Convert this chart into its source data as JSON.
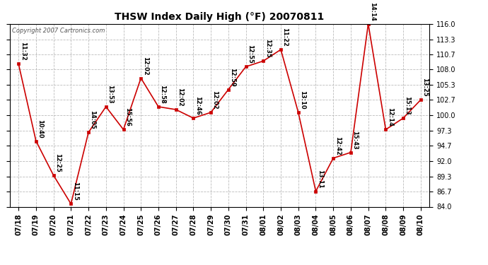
{
  "title": "THSW Index Daily High (°F) 20070811",
  "copyright": "Copyright 2007 Cartronics.com",
  "dates": [
    "07/18",
    "07/19",
    "07/20",
    "07/21",
    "07/22",
    "07/23",
    "07/24",
    "07/25",
    "07/26",
    "07/27",
    "07/28",
    "07/29",
    "07/30",
    "07/31",
    "08/01",
    "08/02",
    "08/03",
    "08/04",
    "08/05",
    "08/06",
    "08/07",
    "08/08",
    "08/09",
    "08/10"
  ],
  "values": [
    109.0,
    95.5,
    89.5,
    84.5,
    97.0,
    101.5,
    97.5,
    106.5,
    101.5,
    101.0,
    99.5,
    100.5,
    104.5,
    108.5,
    109.5,
    111.5,
    100.5,
    86.7,
    92.5,
    93.5,
    116.0,
    97.5,
    99.5,
    102.7
  ],
  "time_labels": [
    "11:32",
    "10:40",
    "12:25",
    "11:15",
    "14:05",
    "13:53",
    "15:56",
    "12:02",
    "12:58",
    "12:02",
    "12:46",
    "12:02",
    "12:59",
    "12:55",
    "12:35",
    "11:22",
    "13:10",
    "13:11",
    "12:42",
    "15:43",
    "14:14",
    "12:14",
    "15:13",
    "13:25"
  ],
  "ylim": [
    84.0,
    116.0
  ],
  "yticks": [
    84.0,
    86.7,
    89.3,
    92.0,
    94.7,
    97.3,
    100.0,
    102.7,
    105.3,
    108.0,
    110.7,
    113.3,
    116.0
  ],
  "line_color": "#cc0000",
  "marker_color": "#cc0000",
  "bg_color": "#ffffff",
  "grid_color": "#bbbbbb",
  "label_color": "#000000",
  "title_fontsize": 10,
  "tick_fontsize": 7,
  "annotation_fontsize": 6,
  "label_rotation": -90
}
